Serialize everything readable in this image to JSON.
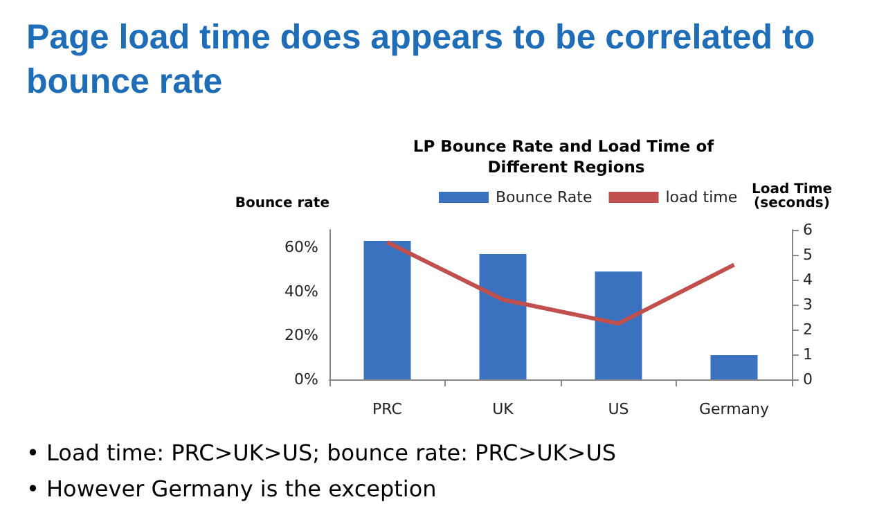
{
  "chart_data": {
    "type": "bar",
    "title": "Page load time does appears to be correlated to bounce rate",
    "subtitle": "LP Bounce Rate and Load Time of Different Regions",
    "categories": [
      "PRC",
      "UK",
      "US",
      "Germany"
    ],
    "series": [
      {
        "name": "Bounce Rate",
        "color": "#3b72c0",
        "values": [
          63,
          57,
          49,
          11
        ]
      },
      {
        "name": "load time",
        "type": "line",
        "axis": "y2",
        "color": "#c0504d",
        "values": [
          5.5,
          3.2,
          2.24,
          4.6
        ]
      }
    ],
    "ylabel": "Bounce rate",
    "y2label": "Load Time\n(seconds)",
    "ylim": [
      0,
      68
    ],
    "yticks": [
      {
        "value": 0,
        "label": "0%"
      },
      {
        "value": 20,
        "label": "20%"
      },
      {
        "value": 40,
        "label": "40%"
      },
      {
        "value": 60,
        "label": "60%"
      }
    ],
    "y2lim": [
      0,
      6
    ],
    "y2ticks": [
      0,
      1,
      2,
      3,
      4,
      5,
      6
    ],
    "legend": "top",
    "grid": false,
    "marker": "none",
    "annotations": [
      "• Load time: PRC>UK>US; bounce rate: PRC>UK>US",
      "• However Germany is the exception"
    ]
  }
}
